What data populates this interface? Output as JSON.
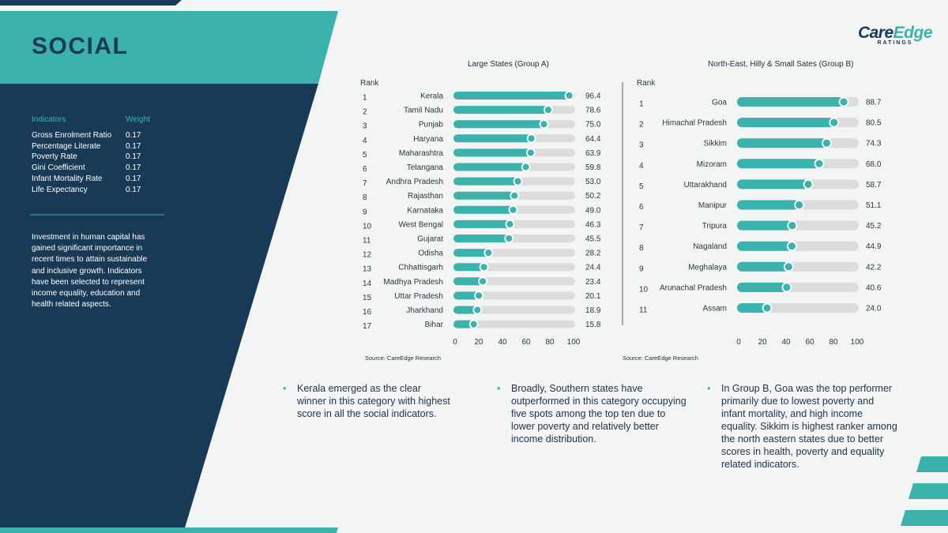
{
  "page": {
    "title": "SOCIAL",
    "logo": {
      "care": "Care",
      "edge": "Edge",
      "sub": "RATINGS"
    }
  },
  "indicators": {
    "header": "Indicators",
    "weight_header": "Weight",
    "rows": [
      {
        "name": "Gross Enrolment Ratio",
        "weight": "0.17"
      },
      {
        "name": "Percentage Literate",
        "weight": "0.17"
      },
      {
        "name": "Poverty Rate",
        "weight": "0.17"
      },
      {
        "name": "Gini Coefficient",
        "weight": "0.17"
      },
      {
        "name": "Infant Mortality Rate",
        "weight": "0.17"
      },
      {
        "name": "Life Expectancy",
        "weight": "0.17"
      }
    ],
    "description": "Investment in human capital has gained significant importance in recent times to attain sustainable and inclusive growth. Indicators have been selected to represent income equality, education and health related aspects."
  },
  "colors": {
    "teal": "#3bb3ac",
    "navy": "#183a57",
    "track": "#dcdcdc"
  },
  "chart_data": [
    {
      "type": "bar",
      "title": "Large States (Group A)",
      "rank_header": "Rank",
      "ranks": [
        "1",
        "2",
        "3",
        "4",
        "5",
        "6",
        "7",
        "8",
        "9",
        "10",
        "11",
        "12",
        "13",
        "14",
        "15",
        "16",
        "17"
      ],
      "categories": [
        "Kerala",
        "Tamil Nadu",
        "Punjab",
        "Haryana",
        "Maharashtra",
        "Telangana",
        "Andhra Pradesh",
        "Rajasthan",
        "Karnataka",
        "West Bengal",
        "Gujarat",
        "Odisha",
        "Chhattisgarh",
        "Madhya Pradesh",
        "Uttar Pradesh",
        "Jharkhand",
        "Bihar"
      ],
      "values": [
        96.4,
        78.6,
        75.0,
        64.4,
        63.9,
        59.8,
        53.0,
        50.2,
        49.0,
        46.3,
        45.5,
        28.2,
        24.4,
        23.4,
        20.1,
        18.9,
        15.8
      ],
      "value_labels": [
        "96.4",
        "78.6",
        "75.0",
        "64.4",
        "63.9",
        "59.8",
        "53.0",
        "50.2",
        "49.0",
        "46.3",
        "45.5",
        "28.2",
        "24.4",
        "23.4",
        "20.1",
        "18.9",
        "15.8"
      ],
      "xlim": [
        0,
        100
      ],
      "xticks": [
        "0",
        "20",
        "40",
        "60",
        "80",
        "100"
      ],
      "source": "Source: CareEdge Research"
    },
    {
      "type": "bar",
      "title": "North-East, Hilly & Small Sates (Group B)",
      "rank_header": "Rank",
      "ranks": [
        "1",
        "2",
        "3",
        "4",
        "5",
        "6",
        "7",
        "8",
        "9",
        "10",
        "11"
      ],
      "categories": [
        "Goa",
        "Himachal Pradesh",
        "Sikkim",
        "Mizoram",
        "Uttarakhand",
        "Manipur",
        "Tripura",
        "Nagaland",
        "Meghalaya",
        "Arunachal Pradesh",
        "Assam"
      ],
      "values": [
        88.7,
        80.5,
        74.3,
        68.0,
        58.7,
        51.1,
        45.2,
        44.9,
        42.2,
        40.6,
        24.0
      ],
      "value_labels": [
        "88.7",
        "80.5",
        "74.3",
        "68.0",
        "58.7",
        "51.1",
        "45.2",
        "44.9",
        "42.2",
        "40.6",
        "24.0"
      ],
      "xlim": [
        0,
        100
      ],
      "xticks": [
        "0",
        "20",
        "40",
        "60",
        "80",
        "100"
      ],
      "source": "Source: CareEdge Research"
    }
  ],
  "bullets": [
    {
      "symbol": "•",
      "text": "Kerala emerged as the clear winner in this category with highest score in all the social indicators."
    },
    {
      "symbol": "•",
      "text": "Broadly, Southern states have outperformed in this category occupying five spots among the top ten due to lower poverty and relatively better income distribution."
    },
    {
      "symbol": "•",
      "text": "In Group B, Goa was the top performer primarily due to lowest poverty and infant mortality, and high income equality. Sikkim is highest ranker among the north eastern states due to better scores in health, poverty and equality related indicators."
    }
  ]
}
